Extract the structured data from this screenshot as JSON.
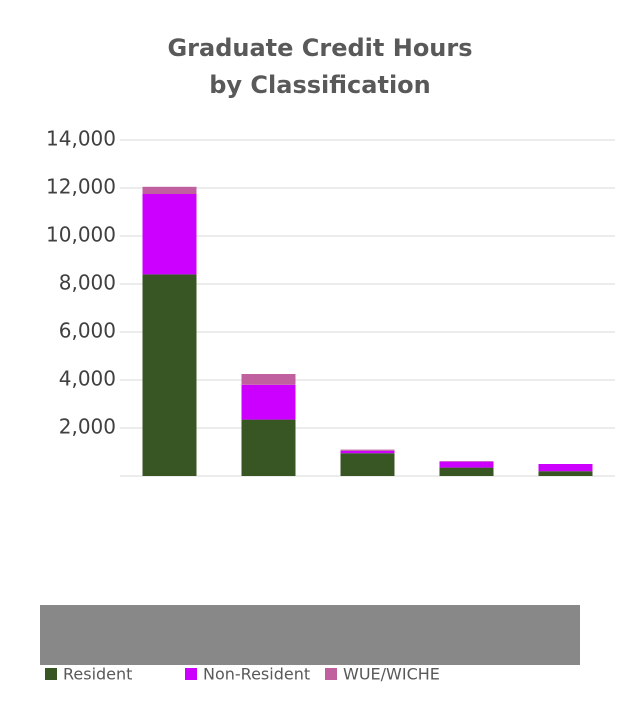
{
  "chart_data": {
    "type": "bar",
    "stacked": true,
    "title": "Graduate Credit Hours by Classification",
    "categories": [
      null,
      null,
      null,
      null,
      null
    ],
    "series": [
      {
        "name": "Resident",
        "color": "#375623",
        "values": [
          8400,
          2350,
          950,
          350,
          200
        ]
      },
      {
        "name": "Non-Resident",
        "color": "#cc00ff",
        "values": [
          3350,
          1450,
          100,
          250,
          300
        ]
      },
      {
        "name": "WUE/WICHE",
        "color": "#c0609f",
        "values": [
          300,
          450,
          50,
          20,
          0
        ]
      }
    ],
    "ylim": [
      0,
      14000
    ],
    "yticks": [
      {
        "value": 2000,
        "label": "2,000"
      },
      {
        "value": 4000,
        "label": "4,000"
      },
      {
        "value": 6000,
        "label": "6,000"
      },
      {
        "value": 8000,
        "label": "8,000"
      },
      {
        "value": 10000,
        "label": "10,000"
      },
      {
        "value": 12000,
        "label": "12,000"
      },
      {
        "value": 14000,
        "label": "14,000"
      }
    ],
    "grid": true,
    "legend": "bottom"
  }
}
